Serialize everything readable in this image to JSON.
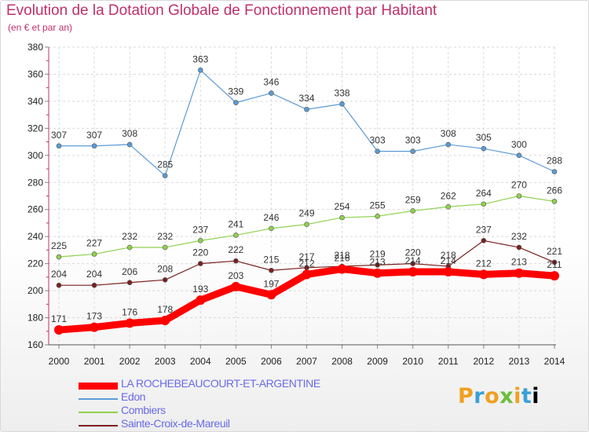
{
  "title": "Evolution de la Dotation Globale de Fonctionnement par Habitant",
  "subtitle": "(en € et par an)",
  "logo": [
    "P",
    "r",
    "o",
    "x",
    "i",
    "t",
    "i"
  ],
  "logo_text": "Proxiti",
  "colors": {
    "title": "#c0306a",
    "axis": "#c0306a",
    "legend_text": "#6a6ae8"
  },
  "chart_data": {
    "type": "line",
    "x": [
      2000,
      2001,
      2002,
      2003,
      2004,
      2005,
      2006,
      2007,
      2008,
      2009,
      2010,
      2011,
      2012,
      2013,
      2014
    ],
    "ylim": [
      160,
      380
    ],
    "yticks": [
      160,
      180,
      200,
      220,
      240,
      260,
      280,
      300,
      320,
      340,
      360,
      380
    ],
    "grid": true,
    "legend_position": "bottom-left",
    "series": [
      {
        "name": "Edon",
        "color": "#5b9bd5",
        "values": [
          307,
          307,
          308,
          285,
          363,
          339,
          346,
          334,
          338,
          303,
          303,
          308,
          305,
          300,
          288
        ]
      },
      {
        "name": "Combiers",
        "color": "#8fd14f",
        "values": [
          225,
          227,
          232,
          232,
          237,
          241,
          246,
          249,
          254,
          255,
          259,
          262,
          264,
          270,
          266
        ]
      },
      {
        "name": "Sainte-Croix-de-Mareuil",
        "color": "#7a2020",
        "values": [
          204,
          204,
          206,
          208,
          220,
          222,
          215,
          217,
          218,
          219,
          220,
          218,
          237,
          232,
          221
        ]
      },
      {
        "name": "LA ROCHEBEAUCOURT-ET-ARGENTINE",
        "color": "#ff0000",
        "values": [
          171,
          173,
          176,
          178,
          193,
          203,
          197,
          212,
          216,
          213,
          214,
          214,
          212,
          213,
          211
        ]
      }
    ]
  }
}
